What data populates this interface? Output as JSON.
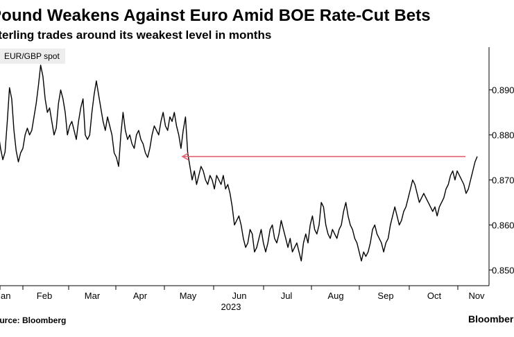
{
  "header": {
    "title": "Pound Weakens Against Euro Amid BOE Rate-Cut Bets",
    "subtitle": "Sterling trades around its weakest level in months"
  },
  "legend": {
    "label": "EUR/GBP spot"
  },
  "footer": {
    "source": "Source: Bloomberg",
    "brand": "Bloomberg"
  },
  "colors": {
    "line": "#000000",
    "arrow": "#e06272",
    "grid": "#d8d8d8"
  },
  "chart_data": {
    "type": "line",
    "title": "Pound Weakens Against Euro Amid BOE Rate-Cut Bets",
    "subtitle": "Sterling trades around its weakest level in months",
    "xlabel": "",
    "ylabel": "",
    "year_label": "2023",
    "x_ticks": [
      "Jan",
      "Feb",
      "Mar",
      "Apr",
      "May",
      "Jun",
      "Jul",
      "Aug",
      "Sep",
      "Oct",
      "Nov"
    ],
    "y_ticks": [
      "0.850",
      "0.860",
      "0.870",
      "0.880",
      "0.890"
    ],
    "ylim": [
      0.8465,
      0.8995
    ],
    "y_axis_side": "right",
    "grid": false,
    "annotation": {
      "type": "arrow",
      "value": 0.8752,
      "direction": "left",
      "from_month": "Nov",
      "to_month": "May"
    },
    "series": [
      {
        "name": "EUR/GBP spot",
        "values": [
          0.8785,
          0.88,
          0.882,
          0.8805,
          0.877,
          0.8745,
          0.8762,
          0.883,
          0.8905,
          0.888,
          0.881,
          0.8765,
          0.874,
          0.876,
          0.877,
          0.88,
          0.8815,
          0.88,
          0.881,
          0.884,
          0.887,
          0.891,
          0.8955,
          0.893,
          0.888,
          0.885,
          0.886,
          0.883,
          0.88,
          0.8815,
          0.887,
          0.89,
          0.888,
          0.885,
          0.88,
          0.882,
          0.883,
          0.881,
          0.879,
          0.883,
          0.886,
          0.888,
          0.88,
          0.879,
          0.88,
          0.885,
          0.889,
          0.892,
          0.889,
          0.886,
          0.883,
          0.881,
          0.884,
          0.882,
          0.88,
          0.876,
          0.875,
          0.873,
          0.88,
          0.885,
          0.881,
          0.879,
          0.88,
          0.878,
          0.877,
          0.88,
          0.881,
          0.879,
          0.878,
          0.876,
          0.875,
          0.877,
          0.88,
          0.882,
          0.881,
          0.88,
          0.883,
          0.885,
          0.882,
          0.881,
          0.884,
          0.883,
          0.885,
          0.882,
          0.88,
          0.877,
          0.881,
          0.884,
          0.876,
          0.873,
          0.87,
          0.872,
          0.869,
          0.871,
          0.873,
          0.872,
          0.87,
          0.869,
          0.871,
          0.87,
          0.868,
          0.871,
          0.87,
          0.869,
          0.871,
          0.868,
          0.869,
          0.867,
          0.864,
          0.86,
          0.861,
          0.862,
          0.86,
          0.857,
          0.855,
          0.856,
          0.859,
          0.858,
          0.854,
          0.855,
          0.857,
          0.859,
          0.856,
          0.854,
          0.856,
          0.859,
          0.86,
          0.857,
          0.856,
          0.858,
          0.861,
          0.859,
          0.857,
          0.855,
          0.857,
          0.854,
          0.855,
          0.856,
          0.854,
          0.852,
          0.856,
          0.858,
          0.856,
          0.86,
          0.862,
          0.859,
          0.858,
          0.86,
          0.865,
          0.864,
          0.86,
          0.858,
          0.857,
          0.859,
          0.858,
          0.857,
          0.859,
          0.86,
          0.863,
          0.865,
          0.862,
          0.86,
          0.859,
          0.857,
          0.856,
          0.854,
          0.852,
          0.854,
          0.853,
          0.854,
          0.856,
          0.859,
          0.86,
          0.858,
          0.857,
          0.856,
          0.854,
          0.856,
          0.857,
          0.86,
          0.862,
          0.864,
          0.862,
          0.86,
          0.861,
          0.863,
          0.864,
          0.866,
          0.868,
          0.87,
          0.869,
          0.867,
          0.865,
          0.866,
          0.867,
          0.866,
          0.865,
          0.864,
          0.863,
          0.864,
          0.862,
          0.864,
          0.865,
          0.866,
          0.868,
          0.869,
          0.871,
          0.872,
          0.87,
          0.872,
          0.871,
          0.87,
          0.869,
          0.867,
          0.868,
          0.87,
          0.872,
          0.874,
          0.8752
        ]
      }
    ]
  }
}
